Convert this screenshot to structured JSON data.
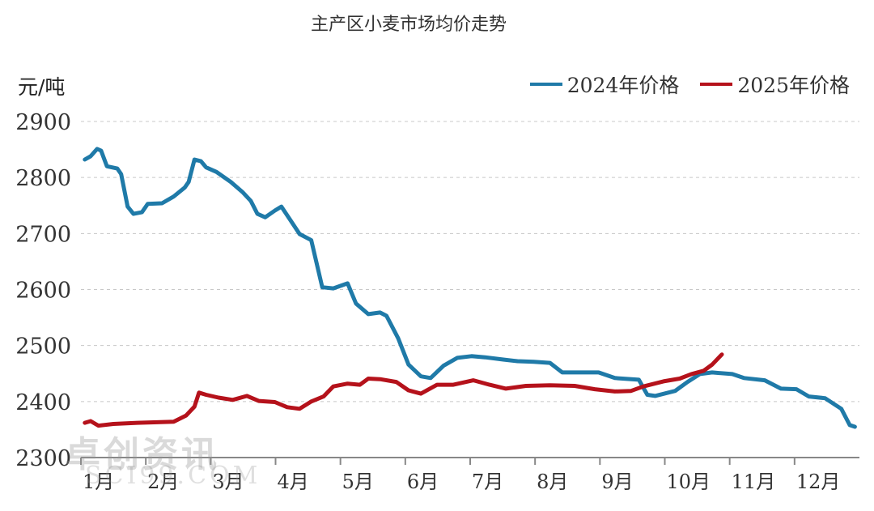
{
  "chart_data": {
    "type": "line",
    "title": "主产区小麦市场均价走势",
    "ylabel": "元/吨",
    "xlabel": "",
    "ylim": [
      2300,
      2900
    ],
    "yticks": [
      "2300",
      "2400",
      "2500",
      "2600",
      "2700",
      "2800",
      "2900"
    ],
    "xlim": [
      0,
      12
    ],
    "xtick_labels": [
      "1月",
      "2月",
      "3月",
      "4月",
      "5月",
      "6月",
      "7月",
      "8月",
      "9月",
      "10月",
      "11月",
      "12月"
    ],
    "grid": "horizontal-dashed",
    "legend_position": "top-right",
    "series": [
      {
        "name": "2024年价格",
        "color": "#1f7aa8",
        "x": [
          0.06,
          0.15,
          0.25,
          0.31,
          0.4,
          0.56,
          0.62,
          0.72,
          0.81,
          0.94,
          1.03,
          1.25,
          1.43,
          1.6,
          1.66,
          1.75,
          1.85,
          1.93,
          2.09,
          2.31,
          2.49,
          2.62,
          2.72,
          2.84,
          2.99,
          3.09,
          3.24,
          3.37,
          3.55,
          3.72,
          3.89,
          4.11,
          4.24,
          4.43,
          4.61,
          4.71,
          4.89,
          5.05,
          5.24,
          5.39,
          5.59,
          5.8,
          6.02,
          6.23,
          6.51,
          6.73,
          6.98,
          7.23,
          7.42,
          7.67,
          7.98,
          8.23,
          8.6,
          8.73,
          8.85,
          9.16,
          9.35,
          9.54,
          9.73,
          10.04,
          10.22,
          10.54,
          10.79,
          11.03,
          11.22,
          11.47,
          11.72,
          11.85,
          11.93
        ],
        "y": [
          2832,
          2838,
          2851,
          2848,
          2820,
          2816,
          2806,
          2748,
          2735,
          2738,
          2753,
          2754,
          2766,
          2782,
          2792,
          2832,
          2829,
          2818,
          2810,
          2792,
          2774,
          2758,
          2735,
          2729,
          2741,
          2748,
          2722,
          2699,
          2688,
          2604,
          2602,
          2611,
          2575,
          2556,
          2559,
          2553,
          2513,
          2466,
          2445,
          2442,
          2464,
          2478,
          2481,
          2479,
          2475,
          2472,
          2471,
          2469,
          2452,
          2452,
          2452,
          2442,
          2439,
          2412,
          2410,
          2419,
          2435,
          2449,
          2452,
          2449,
          2442,
          2438,
          2423,
          2422,
          2409,
          2406,
          2387,
          2358,
          2355
        ]
      },
      {
        "name": "2025年价格",
        "color": "#b5121b",
        "x": [
          0.06,
          0.15,
          0.27,
          0.5,
          0.87,
          1.43,
          1.62,
          1.75,
          1.82,
          1.93,
          2.12,
          2.34,
          2.56,
          2.74,
          2.99,
          3.18,
          3.37,
          3.55,
          3.74,
          3.89,
          4.11,
          4.3,
          4.43,
          4.61,
          4.86,
          5.05,
          5.24,
          5.49,
          5.74,
          6.05,
          6.3,
          6.55,
          6.86,
          7.23,
          7.61,
          7.92,
          8.23,
          8.48,
          8.67,
          8.98,
          9.23,
          9.41,
          9.6,
          9.73,
          9.88
        ],
        "y": [
          2362,
          2365,
          2357,
          2360,
          2362,
          2364,
          2375,
          2391,
          2416,
          2412,
          2407,
          2403,
          2410,
          2401,
          2399,
          2390,
          2387,
          2400,
          2409,
          2427,
          2432,
          2430,
          2441,
          2440,
          2435,
          2420,
          2414,
          2430,
          2430,
          2438,
          2430,
          2423,
          2428,
          2429,
          2428,
          2422,
          2418,
          2419,
          2427,
          2436,
          2441,
          2449,
          2455,
          2466,
          2484
        ]
      }
    ]
  },
  "watermark": {
    "cn": "卓创资讯",
    "en": "SCI99.COM"
  }
}
